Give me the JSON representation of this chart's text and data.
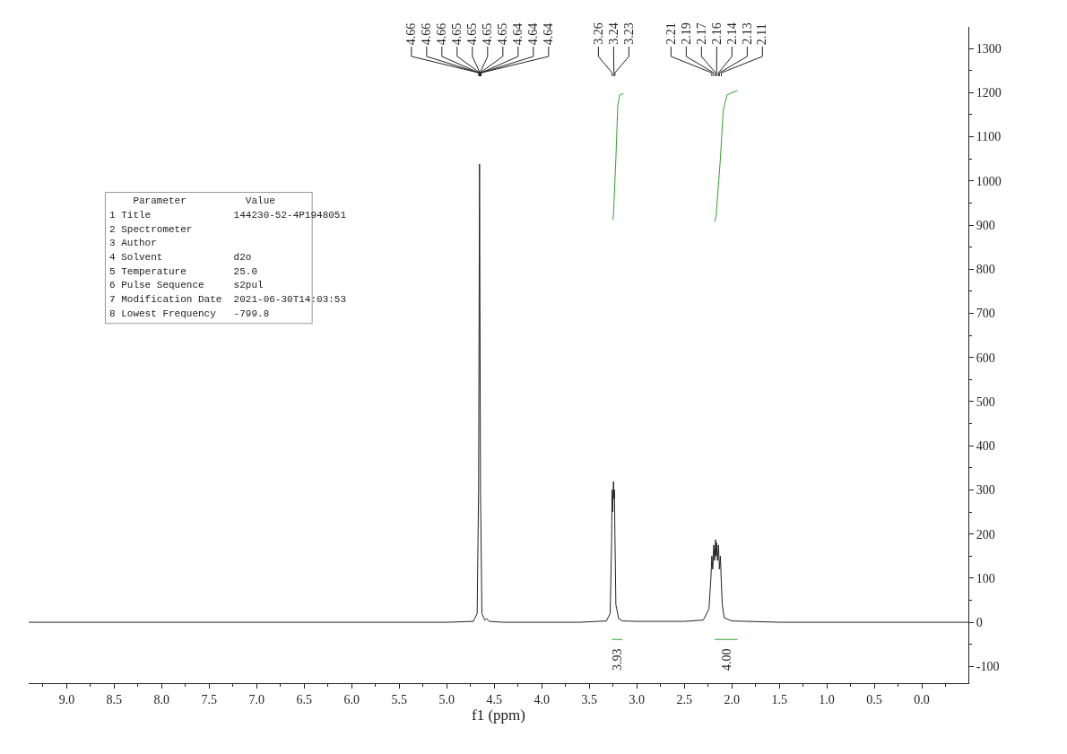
{
  "chart_data": {
    "type": "line",
    "xlabel": "f1 (ppm)",
    "xlim": [
      9.4,
      -0.49
    ],
    "ylim": [
      -138,
      1349
    ],
    "xticks": [
      {
        "value": 9,
        "label": "9.0"
      },
      {
        "value": 8.5,
        "label": "8.5"
      },
      {
        "value": 8,
        "label": "8.0"
      },
      {
        "value": 7.5,
        "label": "7.5"
      },
      {
        "value": 7,
        "label": "7.0"
      },
      {
        "value": 6.5,
        "label": "6.5"
      },
      {
        "value": 6,
        "label": "6.0"
      },
      {
        "value": 5.5,
        "label": "5.5"
      },
      {
        "value": 5,
        "label": "5.0"
      },
      {
        "value": 4.5,
        "label": "4.5"
      },
      {
        "value": 4,
        "label": "4.0"
      },
      {
        "value": 3.5,
        "label": "3.5"
      },
      {
        "value": 3,
        "label": "3.0"
      },
      {
        "value": 2.5,
        "label": "2.5"
      },
      {
        "value": 2,
        "label": "2.0"
      },
      {
        "value": 1.5,
        "label": "1.5"
      },
      {
        "value": 1,
        "label": "1.0"
      },
      {
        "value": 0.5,
        "label": "0.5"
      },
      {
        "value": 0,
        "label": "0.0"
      }
    ],
    "yticks": [
      -100,
      0,
      100,
      200,
      300,
      400,
      500,
      600,
      700,
      800,
      900,
      1000,
      1100,
      1200,
      1300
    ],
    "marker": "none",
    "line_style": "solid",
    "series": [
      {
        "color": "#222222",
        "x": [
          9.4,
          5.0,
          4.72,
          4.68,
          4.665,
          4.655,
          4.645,
          4.63,
          4.6,
          4.58,
          4.55,
          4.4,
          3.6,
          3.32,
          3.28,
          3.265,
          3.26,
          3.255,
          3.245,
          3.24,
          3.235,
          3.23,
          3.22,
          3.19,
          3.15,
          3.0,
          2.5,
          2.3,
          2.24,
          2.22,
          2.21,
          2.2,
          2.19,
          2.18,
          2.17,
          2.165,
          2.16,
          2.15,
          2.14,
          2.13,
          2.12,
          2.11,
          2.1,
          2.08,
          2.0,
          1.5,
          -0.49
        ],
        "values": [
          0,
          0,
          2,
          20,
          300,
          1038,
          300,
          20,
          5,
          8,
          2,
          0,
          0,
          3,
          20,
          180,
          300,
          250,
          319,
          280,
          300,
          200,
          40,
          8,
          3,
          2,
          2,
          5,
          30,
          100,
          150,
          120,
          175,
          140,
          187,
          150,
          180,
          140,
          175,
          120,
          150,
          90,
          40,
          10,
          3,
          0,
          0
        ]
      },
      {
        "color": "#33a033",
        "x": [
          3.25,
          3.245,
          3.22,
          3.2,
          3.18,
          3.14
        ],
        "values": [
          912,
          925,
          1050,
          1170,
          1195,
          1198
        ]
      },
      {
        "color": "#33a033",
        "x": [
          2.18,
          2.165,
          2.12,
          2.09,
          2.05,
          1.94
        ],
        "values": [
          908,
          920,
          1050,
          1160,
          1195,
          1205
        ]
      },
      {
        "color": "#33a033",
        "x": [
          3.26,
          3.15
        ],
        "values": [
          -39,
          -39
        ]
      },
      {
        "color": "#33a033",
        "x": [
          2.18,
          1.94
        ],
        "values": [
          -39,
          -39
        ]
      }
    ],
    "annotations": [
      "4.66",
      "4.66",
      "4.66",
      "4.65",
      "4.65",
      "4.65",
      "4.65",
      "4.64",
      "4.64",
      "4.64",
      "3.26",
      "3.24",
      "3.23",
      "2.21",
      "2.19",
      "2.17",
      "2.16",
      "2.14",
      "2.13",
      "2.11",
      {
        "text": "3.93",
        "x": 3.21,
        "y": -39
      },
      {
        "text": "4.00",
        "x": 2.06,
        "y": -39
      },
      "    Parameter          Value",
      "1 Title              144230-52-4P1948051",
      "2 Spectrometer",
      "3 Author",
      "4 Solvent            d2o",
      "5 Temperature        25.0",
      "6 Pulse Sequence     s2pul",
      "7 Modification Date  2021-06-30T14:03:53",
      "8 Lowest Frequency   -799.8"
    ]
  }
}
